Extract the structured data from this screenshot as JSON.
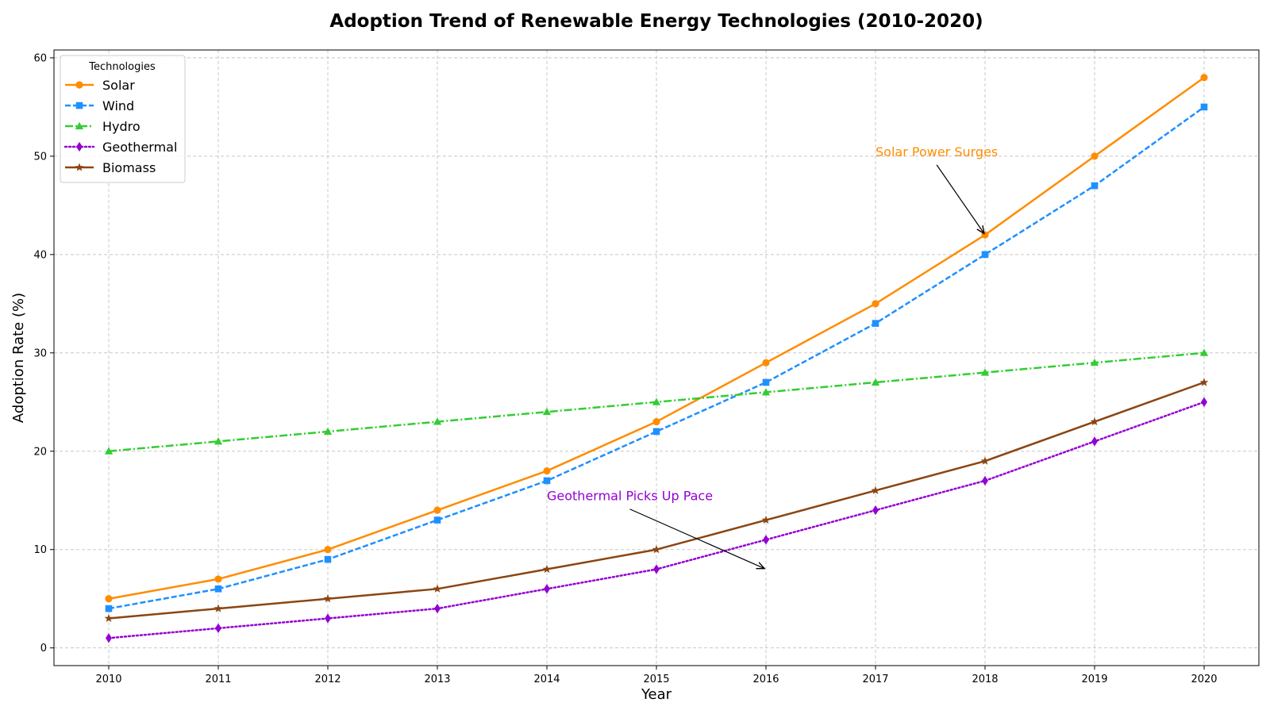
{
  "chart_data": {
    "type": "line",
    "title": "Adoption Trend of Renewable Energy Technologies (2010-2020)",
    "xlabel": "Year",
    "ylabel": "Adoption Rate (%)",
    "x": [
      2010,
      2011,
      2012,
      2013,
      2014,
      2015,
      2016,
      2017,
      2018,
      2019,
      2020
    ],
    "x_tick_labels": [
      "2010",
      "2011",
      "2012",
      "2013",
      "2014",
      "2015",
      "2016",
      "2017",
      "2018",
      "2019",
      "2020"
    ],
    "xlim": [
      2009.5,
      2020.5
    ],
    "ylim": [
      -1.8,
      60.8
    ],
    "y_ticks": [
      0,
      10,
      20,
      30,
      40,
      50,
      60
    ],
    "y_tick_labels": [
      "0",
      "10",
      "20",
      "30",
      "40",
      "50",
      "60"
    ],
    "grid": true,
    "legend": {
      "title": "Technologies",
      "placement": "top-left"
    },
    "series": [
      {
        "name": "Solar",
        "values": [
          5,
          7,
          10,
          14,
          18,
          23,
          29,
          35,
          42,
          50,
          58
        ],
        "color": "#ff8c00",
        "line_style": "solid",
        "marker": "circle"
      },
      {
        "name": "Wind",
        "values": [
          4,
          6,
          9,
          13,
          17,
          22,
          27,
          33,
          40,
          47,
          55
        ],
        "color": "#1e90ff",
        "line_style": "dashed",
        "marker": "square"
      },
      {
        "name": "Hydro",
        "values": [
          20,
          21,
          22,
          23,
          24,
          25,
          26,
          27,
          28,
          29,
          30
        ],
        "color": "#32cd32",
        "line_style": "dashdot",
        "marker": "triangle"
      },
      {
        "name": "Geothermal",
        "values": [
          1,
          2,
          3,
          4,
          6,
          8,
          11,
          14,
          17,
          21,
          25
        ],
        "color": "#9400d3",
        "line_style": "dotted",
        "marker": "diamond"
      },
      {
        "name": "Biomass",
        "values": [
          3,
          4,
          5,
          6,
          8,
          10,
          13,
          16,
          19,
          23,
          27
        ],
        "color": "#8b4513",
        "line_style": "solid",
        "marker": "star"
      }
    ],
    "annotations": [
      {
        "text": "Solar Power Surges",
        "color": "#ff8c00",
        "text_at": [
          2017,
          50
        ],
        "arrow_to": [
          2018,
          42
        ]
      },
      {
        "text": "Geothermal Picks Up Pace",
        "color": "#9400d3",
        "text_at": [
          2014,
          15
        ],
        "arrow_to": [
          2016,
          8
        ]
      }
    ]
  }
}
